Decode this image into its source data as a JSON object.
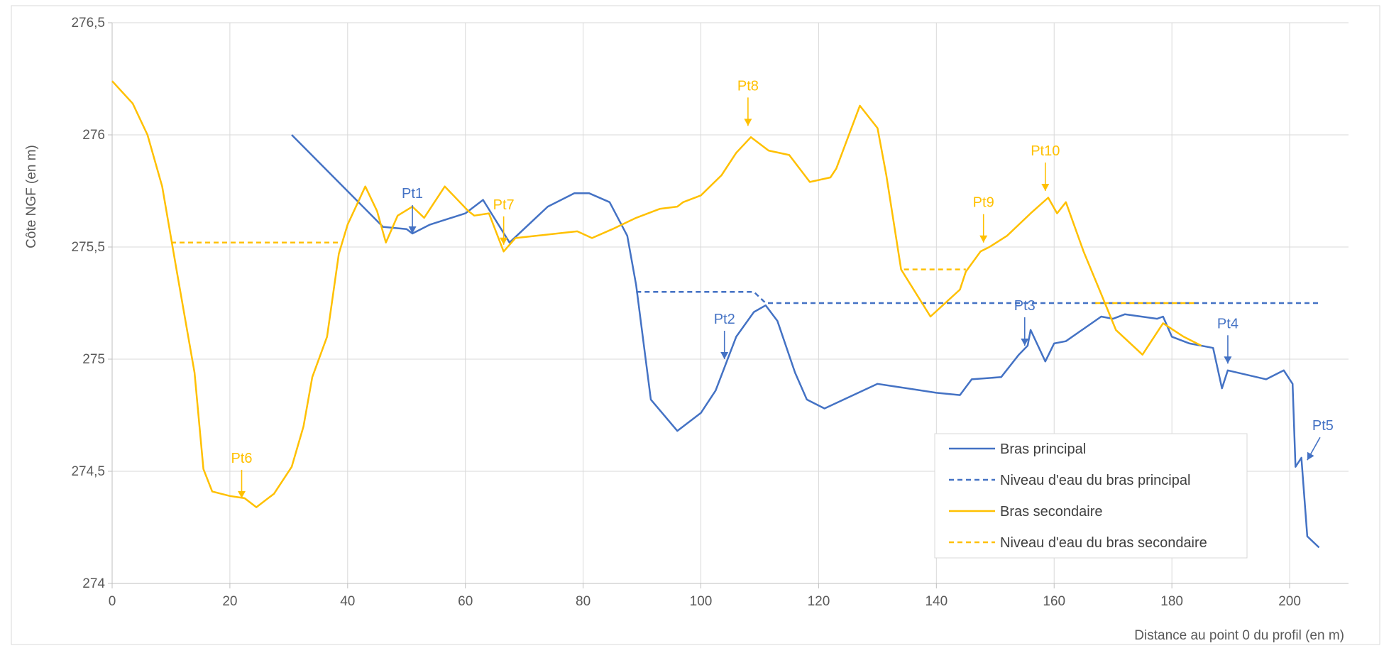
{
  "chart_data": {
    "type": "line",
    "title": "",
    "xlabel": "Distance au point 0 du profil (en m)",
    "ylabel": "Côte NGF (en m)",
    "xlim": [
      0,
      210
    ],
    "ylim": [
      274,
      276.5
    ],
    "x_ticks": [
      0,
      20,
      40,
      60,
      80,
      100,
      120,
      140,
      160,
      180,
      200
    ],
    "y_ticks": [
      274,
      274.5,
      275,
      275.5,
      276,
      276.5
    ],
    "x_tick_labels": [
      "0",
      "20",
      "40",
      "60",
      "80",
      "100",
      "120",
      "140",
      "160",
      "180",
      "200"
    ],
    "y_tick_labels": [
      "274",
      "274,5",
      "275",
      "275,5",
      "276",
      "276,5"
    ],
    "grid": true,
    "legend_position": "bottom-right",
    "colors": {
      "principal": "#4472C4",
      "secondaire": "#FFC000"
    },
    "series": [
      {
        "name": "Bras principal",
        "style": "solid",
        "color": "#4472C4",
        "points": [
          [
            30.5,
            276.0
          ],
          [
            46,
            275.59
          ],
          [
            50,
            275.58
          ],
          [
            51,
            275.56
          ],
          [
            54,
            275.6
          ],
          [
            60,
            275.65
          ],
          [
            63,
            275.71
          ],
          [
            67.5,
            275.52
          ],
          [
            74,
            275.68
          ],
          [
            78.5,
            275.74
          ],
          [
            81,
            275.74
          ],
          [
            84.5,
            275.7
          ],
          [
            87.5,
            275.55
          ],
          [
            89,
            275.33
          ],
          [
            91.5,
            274.82
          ],
          [
            96,
            274.68
          ],
          [
            100,
            274.76
          ],
          [
            102.5,
            274.86
          ],
          [
            106,
            275.1
          ],
          [
            109,
            275.21
          ],
          [
            111,
            275.24
          ],
          [
            113,
            275.17
          ],
          [
            116,
            274.94
          ],
          [
            118,
            274.82
          ],
          [
            121,
            274.78
          ],
          [
            130,
            274.89
          ],
          [
            140,
            274.85
          ],
          [
            144,
            274.84
          ],
          [
            146,
            274.91
          ],
          [
            151,
            274.92
          ],
          [
            154,
            275.02
          ],
          [
            155.5,
            275.06
          ],
          [
            156,
            275.13
          ],
          [
            158.5,
            274.99
          ],
          [
            160,
            275.07
          ],
          [
            162,
            275.08
          ],
          [
            168,
            275.19
          ],
          [
            170,
            275.18
          ],
          [
            172,
            275.2
          ],
          [
            177.5,
            275.18
          ],
          [
            178.5,
            275.19
          ],
          [
            180,
            275.1
          ],
          [
            183,
            275.07
          ],
          [
            187,
            275.05
          ],
          [
            188.5,
            274.87
          ],
          [
            189.5,
            274.95
          ],
          [
            196,
            274.91
          ],
          [
            199,
            274.95
          ],
          [
            200.5,
            274.89
          ],
          [
            201,
            274.52
          ],
          [
            202,
            274.56
          ],
          [
            203,
            274.21
          ],
          [
            205,
            274.16
          ]
        ]
      },
      {
        "name": "Niveau d'eau du bras principal",
        "style": "dashed",
        "color": "#4472C4",
        "points": [
          [
            89,
            275.3
          ],
          [
            109,
            275.3
          ],
          [
            111,
            275.25
          ],
          [
            205,
            275.25
          ]
        ]
      },
      {
        "name": "Bras secondaire",
        "style": "solid",
        "color": "#FFC000",
        "points": [
          [
            0,
            276.24
          ],
          [
            3.5,
            276.14
          ],
          [
            6,
            276.0
          ],
          [
            8.5,
            275.77
          ],
          [
            11,
            275.39
          ],
          [
            14,
            274.94
          ],
          [
            15.5,
            274.51
          ],
          [
            17,
            274.41
          ],
          [
            20,
            274.39
          ],
          [
            22.5,
            274.38
          ],
          [
            24.5,
            274.34
          ],
          [
            27.5,
            274.4
          ],
          [
            30.5,
            274.52
          ],
          [
            32.5,
            274.7
          ],
          [
            34,
            274.92
          ],
          [
            36.5,
            275.1
          ],
          [
            38.5,
            275.47
          ],
          [
            40,
            275.6
          ],
          [
            43,
            275.77
          ],
          [
            45,
            275.66
          ],
          [
            46.5,
            275.52
          ],
          [
            48.5,
            275.64
          ],
          [
            51,
            275.68
          ],
          [
            53,
            275.63
          ],
          [
            56.5,
            275.77
          ],
          [
            60.5,
            275.66
          ],
          [
            61.5,
            275.64
          ],
          [
            64,
            275.65
          ],
          [
            66.5,
            275.48
          ],
          [
            68.5,
            275.54
          ],
          [
            79,
            275.57
          ],
          [
            81.5,
            275.54
          ],
          [
            85,
            275.58
          ],
          [
            89,
            275.63
          ],
          [
            93,
            275.67
          ],
          [
            96,
            275.68
          ],
          [
            97,
            275.7
          ],
          [
            100,
            275.73
          ],
          [
            103.5,
            275.82
          ],
          [
            106,
            275.92
          ],
          [
            108.5,
            275.99
          ],
          [
            111.5,
            275.93
          ],
          [
            115,
            275.91
          ],
          [
            118.5,
            275.79
          ],
          [
            122,
            275.81
          ],
          [
            123,
            275.85
          ],
          [
            127,
            276.13
          ],
          [
            130,
            276.03
          ],
          [
            131.5,
            275.82
          ],
          [
            134,
            275.4
          ],
          [
            139,
            275.19
          ],
          [
            144,
            275.31
          ],
          [
            145,
            275.39
          ],
          [
            147.5,
            275.48
          ],
          [
            149,
            275.5
          ],
          [
            152,
            275.55
          ],
          [
            156,
            275.65
          ],
          [
            159,
            275.72
          ],
          [
            160.5,
            275.65
          ],
          [
            162,
            275.7
          ],
          [
            165,
            275.48
          ],
          [
            168,
            275.29
          ],
          [
            170.5,
            275.13
          ],
          [
            175,
            275.02
          ],
          [
            178.5,
            275.16
          ],
          [
            182,
            275.1
          ],
          [
            185,
            275.06
          ]
        ]
      },
      {
        "name": "Niveau d'eau du bras secondaire",
        "style": "dashed",
        "color": "#FFC000",
        "points": [
          [
            10,
            275.52
          ],
          [
            38.5,
            275.52
          ],
          [
            null,
            null
          ],
          [
            134.5,
            275.4
          ],
          [
            145,
            275.4
          ],
          [
            null,
            null
          ],
          [
            167,
            275.25
          ],
          [
            184,
            275.25
          ]
        ]
      }
    ],
    "annotations": [
      {
        "label": "Pt1",
        "series": "principal",
        "x": 51,
        "y": 275.56,
        "dir": "down"
      },
      {
        "label": "Pt2",
        "series": "principal",
        "x": 104,
        "y": 275.0,
        "dir": "down"
      },
      {
        "label": "Pt3",
        "series": "principal",
        "x": 155,
        "y": 275.06,
        "dir": "down"
      },
      {
        "label": "Pt4",
        "series": "principal",
        "x": 189.5,
        "y": 274.98,
        "dir": "down"
      },
      {
        "label": "Pt5",
        "series": "principal",
        "x": 203,
        "y": 274.55,
        "dir": "down-left"
      },
      {
        "label": "Pt6",
        "series": "secondaire",
        "x": 22,
        "y": 274.38,
        "dir": "down"
      },
      {
        "label": "Pt7",
        "series": "secondaire",
        "x": 66.5,
        "y": 275.51,
        "dir": "down"
      },
      {
        "label": "Pt8",
        "series": "secondaire",
        "x": 108,
        "y": 276.04,
        "dir": "down"
      },
      {
        "label": "Pt9",
        "series": "secondaire",
        "x": 148,
        "y": 275.52,
        "dir": "down"
      },
      {
        "label": "Pt10",
        "series": "secondaire",
        "x": 158.5,
        "y": 275.75,
        "dir": "down"
      }
    ],
    "legend": [
      {
        "label": "Bras principal",
        "color": "#4472C4",
        "style": "solid"
      },
      {
        "label": "Niveau d'eau du bras principal",
        "color": "#4472C4",
        "style": "dashed"
      },
      {
        "label": "Bras secondaire",
        "color": "#FFC000",
        "style": "solid"
      },
      {
        "label": "Niveau d'eau du bras secondaire",
        "color": "#FFC000",
        "style": "dashed"
      }
    ]
  }
}
